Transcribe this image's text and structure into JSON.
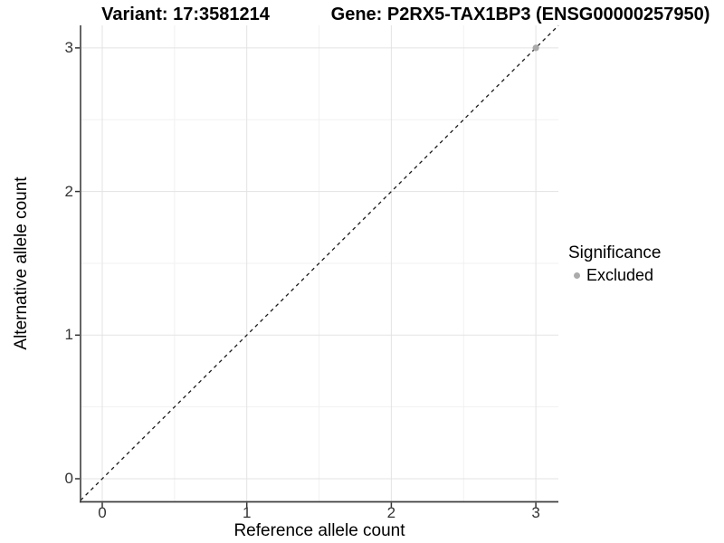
{
  "header": {
    "title_left": "Variant: 17:3581214",
    "title_right": "Gene: P2RX5-TAX1BP3 (ENSG00000257950)"
  },
  "chart_data": {
    "type": "scatter",
    "title": "Variant: 17:3581214 — Gene: P2RX5-TAX1BP3 (ENSG00000257950)",
    "xlabel": "Reference allele count",
    "ylabel": "Alternative allele count",
    "x_ticks": [
      0,
      1,
      2,
      3
    ],
    "y_ticks": [
      0,
      1,
      2,
      3
    ],
    "xlim": [
      -0.15,
      3.16
    ],
    "ylim": [
      -0.15,
      3.16
    ],
    "grid": "major+minor",
    "reference_line": {
      "style": "dashed",
      "slope": 1,
      "intercept": 0,
      "label": "identity y=x"
    },
    "series": [
      {
        "name": "Excluded",
        "color": "#ababab",
        "points": [
          [
            3,
            3
          ]
        ]
      }
    ],
    "legend": {
      "title": "Significance",
      "position": "right",
      "items": [
        {
          "label": "Excluded",
          "color": "#ababab"
        }
      ]
    }
  },
  "colors": {
    "background": "#ffffff",
    "grid_major": "#e3e3e3",
    "grid_minor": "#f1f1f1",
    "axis_line": "#3f3f3f",
    "tick_mark": "#333333",
    "reference_line": "#1a1a1a",
    "point": "#ababab"
  }
}
